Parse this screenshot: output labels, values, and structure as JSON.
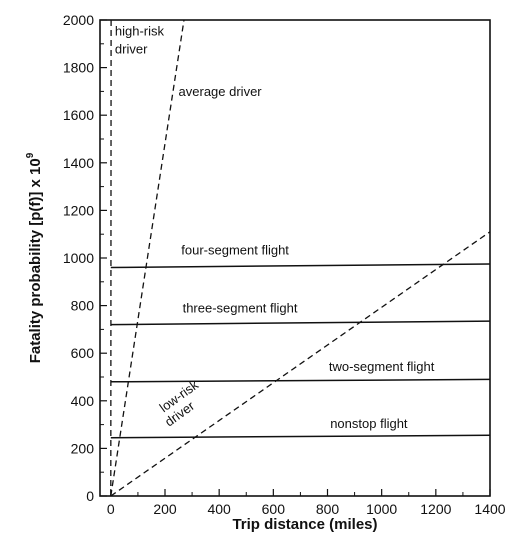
{
  "chart_data": {
    "type": "line",
    "title": "",
    "xlabel": "Trip distance (miles)",
    "ylabel_main": "Fatality probability [p(f)] x 10",
    "ylabel_sup": "9",
    "xlim": [
      -40,
      1400
    ],
    "ylim": [
      0,
      2000
    ],
    "x_ticks": [
      0,
      200,
      400,
      600,
      800,
      1000,
      1200,
      1400
    ],
    "y_ticks": [
      0,
      200,
      400,
      600,
      800,
      1000,
      1200,
      1400,
      1600,
      1800,
      2000
    ],
    "grid": false,
    "legend": "none",
    "series": [
      {
        "name": "nonstop flight",
        "style": "solid",
        "x": [
          0,
          1400
        ],
        "y": [
          245,
          255
        ]
      },
      {
        "name": "two-segment flight",
        "style": "solid",
        "x": [
          0,
          1400
        ],
        "y": [
          480,
          490
        ]
      },
      {
        "name": "three-segment flight",
        "style": "solid",
        "x": [
          0,
          1400
        ],
        "y": [
          720,
          735
        ]
      },
      {
        "name": "four-segment flight",
        "style": "solid",
        "x": [
          0,
          1400
        ],
        "y": [
          960,
          975
        ]
      },
      {
        "name": "high-risk driver",
        "style": "dashed",
        "x": [
          0,
          1
        ],
        "y": [
          0,
          2000
        ]
      },
      {
        "name": "average driver",
        "style": "dashed",
        "x": [
          0,
          270
        ],
        "y": [
          0,
          2000
        ]
      },
      {
        "name": "low-risk driver",
        "style": "dashed",
        "x": [
          0,
          1400
        ],
        "y": [
          0,
          1110
        ]
      }
    ],
    "annotations": [
      {
        "text": "high-risk",
        "x": 15,
        "y": 1935,
        "rotate": 0
      },
      {
        "text": "driver",
        "x": 15,
        "y": 1860,
        "rotate": 0
      },
      {
        "text": "average driver",
        "x": 250,
        "y": 1680,
        "rotate": 0
      },
      {
        "text": "four-segment flight",
        "x": 260,
        "y": 1015,
        "rotate": 0
      },
      {
        "text": "three-segment flight",
        "x": 265,
        "y": 770,
        "rotate": 0
      },
      {
        "text": "two-segment flight",
        "x": 805,
        "y": 525,
        "rotate": 0
      },
      {
        "text": "nonstop flight",
        "x": 810,
        "y": 285,
        "rotate": 0
      },
      {
        "text": "low-risk",
        "x": 195,
        "y": 350,
        "rotate": 36
      },
      {
        "text": "driver",
        "x": 215,
        "y": 290,
        "rotate": 36
      }
    ]
  }
}
